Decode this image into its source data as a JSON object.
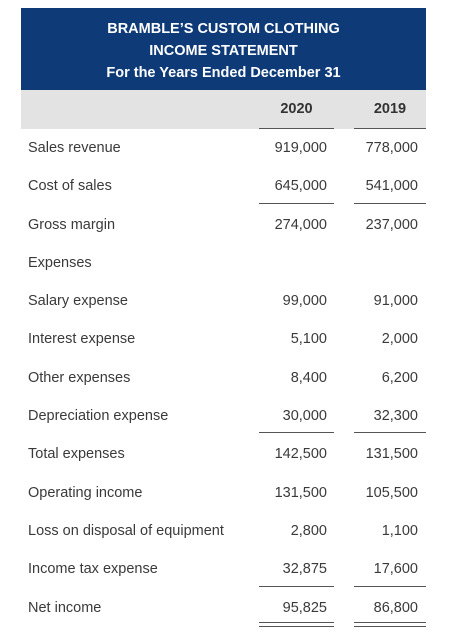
{
  "header": {
    "company": "BRAMBLE’S CUSTOM CLOTHING",
    "statement": "INCOME STATEMENT",
    "period": "For the Years Ended December 31"
  },
  "columns": [
    "2020",
    "2019"
  ],
  "rows": [
    {
      "label": "Sales revenue",
      "v2020": "919,000",
      "v2019": "778,000",
      "rule": "none"
    },
    {
      "label": "Cost of sales",
      "v2020": "645,000",
      "v2019": "541,000",
      "rule": "single"
    },
    {
      "label": "Gross margin",
      "v2020": "274,000",
      "v2019": "237,000",
      "rule": "none"
    },
    {
      "label": "Expenses",
      "v2020": "",
      "v2019": "",
      "rule": "none"
    },
    {
      "label": "Salary expense",
      "v2020": "99,000",
      "v2019": "91,000",
      "rule": "none"
    },
    {
      "label": "Interest expense",
      "v2020": "5,100",
      "v2019": "2,000",
      "rule": "none"
    },
    {
      "label": "Other expenses",
      "v2020": "8,400",
      "v2019": "6,200",
      "rule": "none"
    },
    {
      "label": "Depreciation expense",
      "v2020": "30,000",
      "v2019": "32,300",
      "rule": "single"
    },
    {
      "label": "Total expenses",
      "v2020": "142,500",
      "v2019": "131,500",
      "rule": "none"
    },
    {
      "label": "Operating income",
      "v2020": "131,500",
      "v2019": "105,500",
      "rule": "none"
    },
    {
      "label": "Loss on disposal of equipment",
      "v2020": "2,800",
      "v2019": "1,100",
      "rule": "none"
    },
    {
      "label": "Income tax expense",
      "v2020": "32,875",
      "v2019": "17,600",
      "rule": "single"
    },
    {
      "label": "Net income",
      "v2020": "95,825",
      "v2019": "86,800",
      "rule": "double"
    }
  ],
  "colors": {
    "header_bg": "#0e3a78",
    "colhead_bg": "#e3e3e3"
  }
}
